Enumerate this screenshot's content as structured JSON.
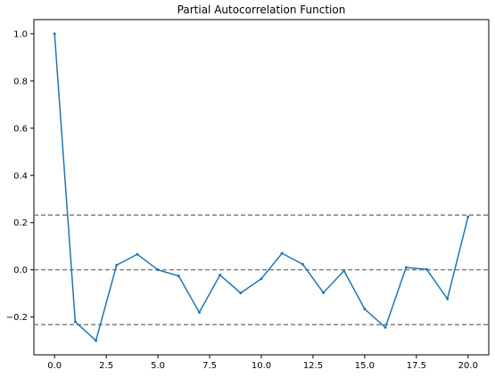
{
  "chart_data": {
    "type": "line",
    "title": "Partial Autocorrelation Function",
    "xlabel": "",
    "ylabel": "",
    "xlim": [
      -1,
      21
    ],
    "ylim": [
      -0.36,
      1.06
    ],
    "x_ticks": [
      0,
      2.5,
      5,
      7.5,
      10,
      12.5,
      15,
      17.5,
      20
    ],
    "x_tick_labels": [
      "0.0",
      "2.5",
      "5.0",
      "7.5",
      "10.0",
      "12.5",
      "15.0",
      "17.5",
      "20.0"
    ],
    "y_ticks": [
      -0.2,
      0,
      0.2,
      0.4,
      0.6,
      0.8,
      1.0
    ],
    "y_tick_labels": [
      "−0.2",
      "0.0",
      "0.2",
      "0.4",
      "0.6",
      "0.8",
      "1.0"
    ],
    "grid": false,
    "series": [
      {
        "x": [
          0,
          1,
          2,
          3,
          4,
          5,
          6,
          7,
          8,
          9,
          10,
          11,
          12,
          13,
          14,
          15,
          16,
          17,
          18,
          19,
          20
        ],
        "values": [
          1.0,
          -0.22,
          -0.3,
          0.02,
          0.066,
          0.0,
          -0.026,
          -0.18,
          -0.022,
          -0.098,
          -0.038,
          0.07,
          0.024,
          -0.097,
          -0.004,
          -0.166,
          -0.244,
          0.01,
          0.002,
          -0.123,
          0.225
        ],
        "color": "#1f77b4"
      }
    ],
    "reference_lines": [
      {
        "y": 0.232,
        "style": "dashed",
        "color": "#808080"
      },
      {
        "y": 0.0,
        "style": "dashed",
        "color": "#808080"
      },
      {
        "y": -0.232,
        "style": "dashed",
        "color": "#808080"
      }
    ]
  }
}
